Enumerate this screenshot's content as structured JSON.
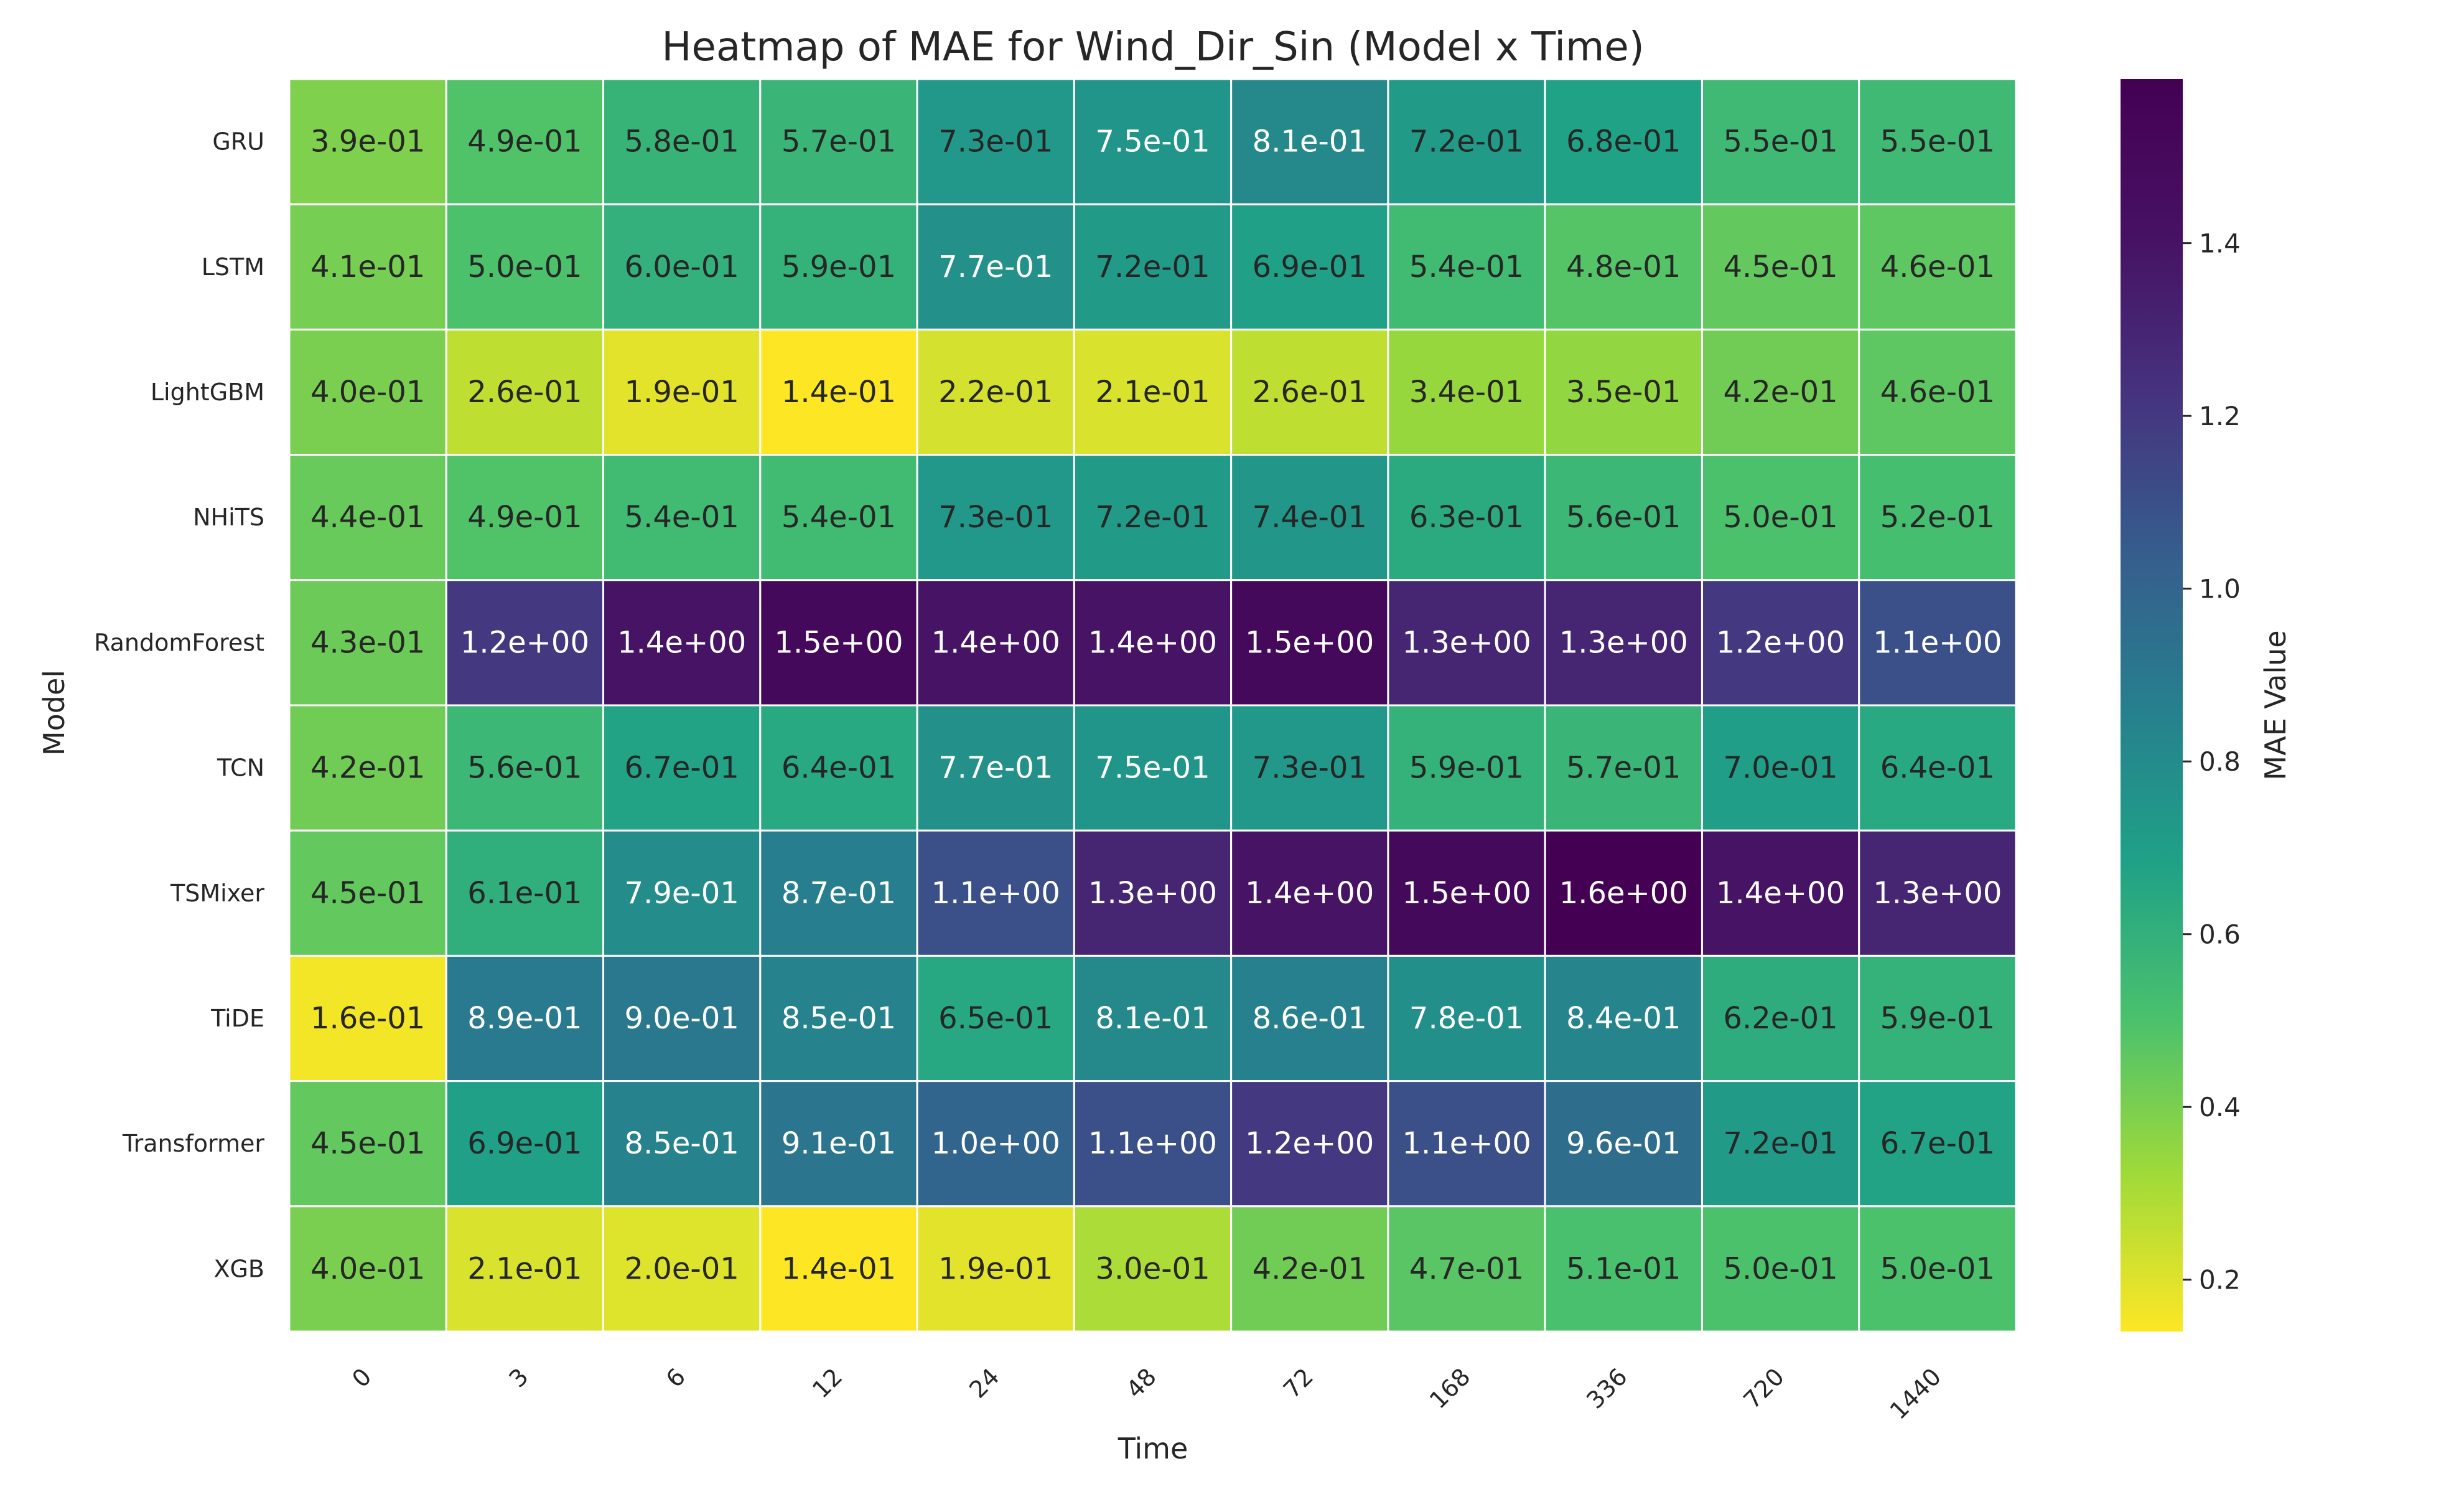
{
  "chart_data": {
    "type": "heatmap",
    "title": "Heatmap of MAE for Wind_Dir_Sin (Model x Time)",
    "xlabel": "Time",
    "ylabel": "Model",
    "colorbar_label": "MAE Value",
    "colormap": "viridis_r",
    "vmin": 0.14,
    "vmax": 1.59,
    "colorbar_ticks": [
      "0.2",
      "0.4",
      "0.6",
      "0.8",
      "1.0",
      "1.2",
      "1.4"
    ],
    "x": [
      "0",
      "3",
      "6",
      "12",
      "24",
      "48",
      "72",
      "168",
      "336",
      "720",
      "1440"
    ],
    "y": [
      "GRU",
      "LSTM",
      "LightGBM",
      "NHiTS",
      "RandomForest",
      "TCN",
      "TSMixer",
      "TiDE",
      "Transformer",
      "XGB"
    ],
    "values": [
      [
        0.39,
        0.49,
        0.58,
        0.57,
        0.73,
        0.75,
        0.81,
        0.72,
        0.68,
        0.55,
        0.55
      ],
      [
        0.41,
        0.5,
        0.6,
        0.59,
        0.77,
        0.72,
        0.69,
        0.54,
        0.48,
        0.45,
        0.46
      ],
      [
        0.4,
        0.26,
        0.19,
        0.14,
        0.22,
        0.21,
        0.26,
        0.34,
        0.35,
        0.42,
        0.46
      ],
      [
        0.44,
        0.49,
        0.54,
        0.54,
        0.73,
        0.72,
        0.74,
        0.63,
        0.56,
        0.5,
        0.52
      ],
      [
        0.43,
        1.2,
        1.4,
        1.5,
        1.4,
        1.4,
        1.5,
        1.3,
        1.3,
        1.2,
        1.1
      ],
      [
        0.42,
        0.56,
        0.67,
        0.64,
        0.77,
        0.75,
        0.73,
        0.59,
        0.57,
        0.7,
        0.64
      ],
      [
        0.45,
        0.61,
        0.79,
        0.87,
        1.1,
        1.3,
        1.4,
        1.5,
        1.6,
        1.4,
        1.3
      ],
      [
        0.16,
        0.89,
        0.9,
        0.85,
        0.65,
        0.81,
        0.86,
        0.78,
        0.84,
        0.62,
        0.59
      ],
      [
        0.45,
        0.69,
        0.85,
        0.91,
        1.0,
        1.1,
        1.2,
        1.1,
        0.96,
        0.72,
        0.67
      ],
      [
        0.4,
        0.21,
        0.2,
        0.14,
        0.19,
        0.3,
        0.42,
        0.47,
        0.51,
        0.5,
        0.5
      ]
    ],
    "annotations": [
      [
        "3.9e-01",
        "4.9e-01",
        "5.8e-01",
        "5.7e-01",
        "7.3e-01",
        "7.5e-01",
        "8.1e-01",
        "7.2e-01",
        "6.8e-01",
        "5.5e-01",
        "5.5e-01"
      ],
      [
        "4.1e-01",
        "5.0e-01",
        "6.0e-01",
        "5.9e-01",
        "7.7e-01",
        "7.2e-01",
        "6.9e-01",
        "5.4e-01",
        "4.8e-01",
        "4.5e-01",
        "4.6e-01"
      ],
      [
        "4.0e-01",
        "2.6e-01",
        "1.9e-01",
        "1.4e-01",
        "2.2e-01",
        "2.1e-01",
        "2.6e-01",
        "3.4e-01",
        "3.5e-01",
        "4.2e-01",
        "4.6e-01"
      ],
      [
        "4.4e-01",
        "4.9e-01",
        "5.4e-01",
        "5.4e-01",
        "7.3e-01",
        "7.2e-01",
        "7.4e-01",
        "6.3e-01",
        "5.6e-01",
        "5.0e-01",
        "5.2e-01"
      ],
      [
        "4.3e-01",
        "1.2e+00",
        "1.4e+00",
        "1.5e+00",
        "1.4e+00",
        "1.4e+00",
        "1.5e+00",
        "1.3e+00",
        "1.3e+00",
        "1.2e+00",
        "1.1e+00"
      ],
      [
        "4.2e-01",
        "5.6e-01",
        "6.7e-01",
        "6.4e-01",
        "7.7e-01",
        "7.5e-01",
        "7.3e-01",
        "5.9e-01",
        "5.7e-01",
        "7.0e-01",
        "6.4e-01"
      ],
      [
        "4.5e-01",
        "6.1e-01",
        "7.9e-01",
        "8.7e-01",
        "1.1e+00",
        "1.3e+00",
        "1.4e+00",
        "1.5e+00",
        "1.6e+00",
        "1.4e+00",
        "1.3e+00"
      ],
      [
        "1.6e-01",
        "8.9e-01",
        "9.0e-01",
        "8.5e-01",
        "6.5e-01",
        "8.1e-01",
        "8.6e-01",
        "7.8e-01",
        "8.4e-01",
        "6.2e-01",
        "5.9e-01"
      ],
      [
        "4.5e-01",
        "6.9e-01",
        "8.5e-01",
        "9.1e-01",
        "1.0e+00",
        "1.1e+00",
        "1.2e+00",
        "1.1e+00",
        "9.6e-01",
        "7.2e-01",
        "6.7e-01"
      ],
      [
        "4.0e-01",
        "2.1e-01",
        "2.0e-01",
        "1.4e-01",
        "1.9e-01",
        "3.0e-01",
        "4.2e-01",
        "4.7e-01",
        "5.1e-01",
        "5.0e-01",
        "5.0e-01"
      ]
    ]
  }
}
